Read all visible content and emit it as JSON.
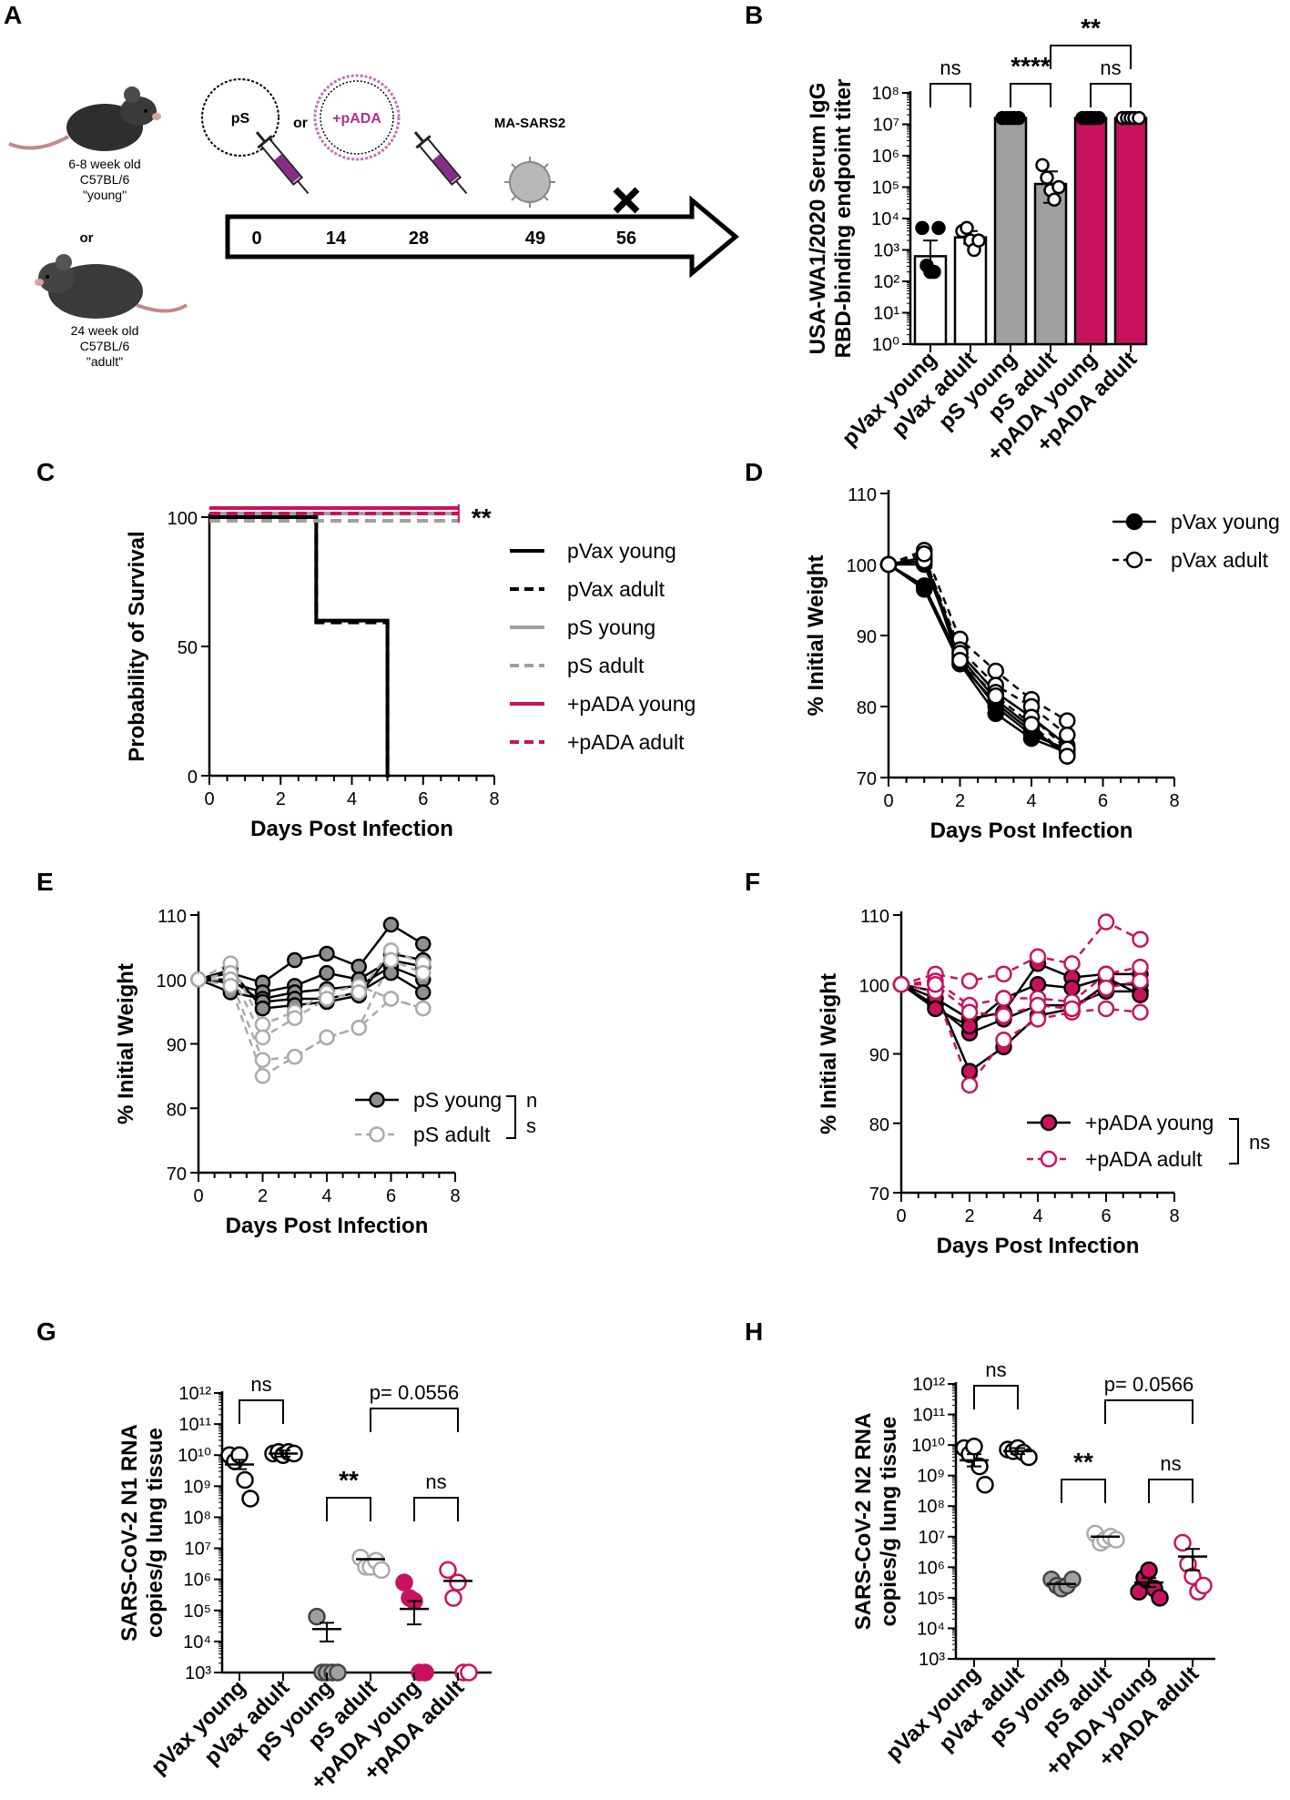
{
  "panel_labels": [
    "A",
    "B",
    "C",
    "D",
    "E",
    "F",
    "G",
    "H"
  ],
  "schematic": {
    "mouse_young_label": [
      "6-8 week old",
      "C57BL/6",
      "\"young\""
    ],
    "or_label": "or",
    "mouse_adult_label": [
      "24 week old",
      "C57BL/6",
      "\"adult\""
    ],
    "plasmid_ps": "pS",
    "plasmid_or": "or",
    "plasmid_pada": "+pADA",
    "virus_label": "MA-SARS2",
    "timeline_days": [
      "0",
      "14",
      "28",
      "49",
      "56"
    ]
  },
  "colors": {
    "black": "#000000",
    "grey": "#a0a0a0",
    "magenta": "#c8125f",
    "light_grey": "#aaaaaa"
  },
  "chart_data": [
    {
      "id": "B",
      "type": "bar",
      "yscale": "log",
      "ylabel": [
        "USA-WA1/2020 Serum IgG",
        "RBD-binding endpoint titer"
      ],
      "ylim_exp": [
        0,
        8
      ],
      "ytick_labels": [
        "10⁰",
        "10¹",
        "10²",
        "10³",
        "10⁴",
        "10⁵",
        "10⁶",
        "10⁷",
        "10⁸"
      ],
      "categories": [
        "pVax young",
        "pVax adult",
        "pS young",
        "pS adult",
        "+pADA young",
        "+pADA adult"
      ],
      "bar_exp": [
        2.8,
        3.4,
        7.2,
        5.1,
        7.2,
        7.2
      ],
      "err_exp": [
        [
          2.4,
          3.3
        ],
        [
          3.2,
          3.6
        ],
        [
          7.2,
          7.2
        ],
        [
          4.5,
          5.5
        ],
        [
          7.2,
          7.2
        ],
        [
          7.2,
          7.2
        ]
      ],
      "points_exp": [
        [
          3.7,
          2.5,
          2.3,
          2.3,
          3.7
        ],
        [
          3.6,
          3.7,
          3.3,
          3.0,
          3.3
        ],
        [
          7.2,
          7.2,
          7.2,
          7.2,
          7.2
        ],
        [
          5.7,
          5.3,
          4.9,
          4.6,
          5.0
        ],
        [
          7.2,
          7.2,
          7.2,
          7.2,
          7.2
        ],
        [
          7.2,
          7.2,
          7.2,
          7.2,
          7.2
        ]
      ],
      "bar_fill": [
        "#ffffff",
        "#ffffff",
        "#a0a0a0",
        "#a0a0a0",
        "#c8125f",
        "#c8125f"
      ],
      "point_fill": [
        "#000000",
        "#ffffff",
        "#000000",
        "#ffffff",
        "#000000",
        "#ffffff"
      ],
      "comparisons": [
        {
          "from": 0,
          "to": 1,
          "label": "ns"
        },
        {
          "from": 2,
          "to": 3,
          "label": "****"
        },
        {
          "from": 4,
          "to": 5,
          "label": "ns"
        },
        {
          "from": 3,
          "to": 5,
          "label": "**"
        }
      ]
    },
    {
      "id": "C",
      "type": "line",
      "subtype": "survival",
      "xlabel": "Days Post Infection",
      "ylabel": "Probability of Survival",
      "xlim": [
        0,
        8
      ],
      "ylim": [
        0,
        100
      ],
      "xticks": [
        0,
        2,
        4,
        6,
        8
      ],
      "yticks": [
        0,
        50,
        100
      ],
      "series": [
        {
          "name": "pVax young",
          "color": "#000000",
          "dash": false,
          "steps": [
            [
              0,
              100
            ],
            [
              3,
              100
            ],
            [
              3,
              60
            ],
            [
              5,
              60
            ],
            [
              5,
              0
            ]
          ]
        },
        {
          "name": "pVax adult",
          "color": "#000000",
          "dash": true,
          "steps": [
            [
              0,
              100
            ],
            [
              3,
              100
            ],
            [
              3,
              60
            ],
            [
              5,
              60
            ],
            [
              5,
              0
            ]
          ]
        },
        {
          "name": "pS young",
          "color": "#a0a0a0",
          "dash": false,
          "steps": [
            [
              0,
              100
            ],
            [
              7,
              100
            ]
          ]
        },
        {
          "name": "pS adult",
          "color": "#a0a0a0",
          "dash": true,
          "steps": [
            [
              0,
              100
            ],
            [
              7,
              100
            ]
          ]
        },
        {
          "name": "+pADA young",
          "color": "#c8125f",
          "dash": false,
          "steps": [
            [
              0,
              100
            ],
            [
              7,
              100
            ]
          ]
        },
        {
          "name": "+pADA adult",
          "color": "#c8125f",
          "dash": true,
          "steps": [
            [
              0,
              100
            ],
            [
              7,
              100
            ]
          ]
        }
      ],
      "annotation": "**"
    },
    {
      "id": "D",
      "type": "line",
      "xlabel": "Days Post Infection",
      "ylabel": "% Initial Weight",
      "xlim": [
        0,
        8
      ],
      "ylim": [
        70,
        110
      ],
      "xticks": [
        0,
        2,
        4,
        6,
        8
      ],
      "yticks": [
        70,
        80,
        90,
        100,
        110
      ],
      "x": [
        0,
        1,
        2,
        3,
        4,
        5
      ],
      "series": [
        {
          "name": "pVax young",
          "group": "young",
          "values": [
            100,
            96.5,
            86,
            79,
            75.5,
            73.5
          ]
        },
        {
          "name": "pVax young",
          "group": "young",
          "values": [
            100,
            97,
            86.5,
            80,
            76,
            74
          ]
        },
        {
          "name": "pVax young",
          "group": "young",
          "values": [
            100,
            100,
            87,
            81,
            77,
            73
          ]
        },
        {
          "name": "pVax young",
          "group": "young",
          "values": [
            100,
            100.5,
            87.5,
            82,
            78.5,
            74.5
          ]
        },
        {
          "name": "pVax young",
          "group": "young",
          "values": [
            100,
            101,
            86,
            80.5,
            76.5,
            73.5
          ]
        },
        {
          "name": "pVax adult",
          "group": "adult",
          "values": [
            100,
            102,
            89.5,
            85,
            81,
            78
          ]
        },
        {
          "name": "pVax adult",
          "group": "adult",
          "values": [
            100,
            101,
            88,
            83,
            80,
            76
          ]
        },
        {
          "name": "pVax adult",
          "group": "adult",
          "values": [
            100,
            100.5,
            87.5,
            82,
            78.5,
            74
          ]
        },
        {
          "name": "pVax adult",
          "group": "adult",
          "values": [
            100,
            101.5,
            86.5,
            81.5,
            77.5,
            73
          ]
        }
      ],
      "legend": [
        {
          "name": "pVax young",
          "group": "young"
        },
        {
          "name": "pVax adult",
          "group": "adult"
        }
      ]
    },
    {
      "id": "E",
      "type": "line",
      "xlabel": "Days Post Infection",
      "ylabel": "% Initial Weight",
      "xlim": [
        0,
        8
      ],
      "ylim": [
        70,
        110
      ],
      "xticks": [
        0,
        2,
        4,
        6,
        8
      ],
      "yticks": [
        70,
        80,
        90,
        100,
        110
      ],
      "x": [
        0,
        1,
        2,
        3,
        4,
        5,
        6,
        7
      ],
      "series": [
        {
          "name": "pS young",
          "group": "young",
          "values": [
            100,
            101,
            99.5,
            103,
            104,
            102,
            108.5,
            105.5
          ]
        },
        {
          "name": "pS young",
          "group": "young",
          "values": [
            100,
            99.5,
            98,
            99,
            101,
            100,
            103,
            102
          ]
        },
        {
          "name": "pS young",
          "group": "young",
          "values": [
            100,
            98,
            97,
            98,
            98.5,
            99,
            102,
            100
          ]
        },
        {
          "name": "pS young",
          "group": "young",
          "values": [
            100,
            100,
            96.5,
            97,
            97,
            98,
            101,
            98
          ]
        },
        {
          "name": "pS young",
          "group": "young",
          "values": [
            100,
            101.5,
            95.5,
            96,
            96.5,
            97.5,
            104,
            103
          ]
        },
        {
          "name": "pS adult",
          "group": "adult",
          "values": [
            100,
            102.5,
            93,
            95,
            98,
            99,
            97,
            95.5
          ]
        },
        {
          "name": "pS adult",
          "group": "adult",
          "values": [
            100,
            101,
            91,
            94,
            97,
            98,
            104.5,
            102.5
          ]
        },
        {
          "name": "pS adult",
          "group": "adult",
          "values": [
            100,
            100,
            87.5,
            88,
            91,
            92.5,
            103,
            101
          ]
        },
        {
          "name": "pS adult",
          "group": "adult",
          "values": [
            100,
            99,
            85,
            88,
            91,
            92.5,
            97,
            95.5
          ]
        }
      ],
      "legend": [
        {
          "name": "pS young",
          "group": "young"
        },
        {
          "name": "pS adult",
          "group": "adult"
        }
      ],
      "annotation": [
        "n",
        "s"
      ]
    },
    {
      "id": "F",
      "type": "line",
      "xlabel": "Days Post Infection",
      "ylabel": "% Initial Weight",
      "xlim": [
        0,
        8
      ],
      "ylim": [
        70,
        110
      ],
      "xticks": [
        0,
        2,
        4,
        6,
        8
      ],
      "yticks": [
        70,
        80,
        90,
        100,
        110
      ],
      "x": [
        0,
        1,
        2,
        3,
        4,
        5,
        6,
        7
      ],
      "series": [
        {
          "name": "+pADA young",
          "group": "young",
          "values": [
            100,
            99,
            87.5,
            91,
            95.5,
            96.5,
            100,
            100
          ]
        },
        {
          "name": "+pADA young",
          "group": "young",
          "values": [
            100,
            97,
            93,
            95,
            97,
            97,
            99,
            99
          ]
        },
        {
          "name": "+pADA young",
          "group": "young",
          "values": [
            100,
            98,
            95,
            96,
            103,
            101,
            101.5,
            101.5
          ]
        },
        {
          "name": "+pADA young",
          "group": "young",
          "values": [
            100,
            96.5,
            94,
            98,
            100,
            99.5,
            101,
            98.5
          ]
        },
        {
          "name": "+pADA adult",
          "group": "adult",
          "values": [
            100,
            101.5,
            100.5,
            101.5,
            104,
            103,
            109,
            106.5
          ]
        },
        {
          "name": "+pADA adult",
          "group": "adult",
          "values": [
            100,
            100.5,
            97,
            98,
            98,
            97.5,
            101.5,
            102.5
          ]
        },
        {
          "name": "+pADA adult",
          "group": "adult",
          "values": [
            100,
            99,
            85.5,
            92,
            95,
            96,
            96.5,
            96
          ]
        },
        {
          "name": "+pADA adult",
          "group": "adult",
          "values": [
            100,
            100,
            96,
            95.5,
            97,
            96.5,
            99.5,
            100.5
          ]
        }
      ],
      "legend": [
        {
          "name": "+pADA young",
          "group": "young"
        },
        {
          "name": "+pADA adult",
          "group": "adult"
        }
      ],
      "annotation": "ns"
    },
    {
      "id": "G",
      "type": "scatter",
      "yscale": "log",
      "ylabel": [
        "SARS-CoV-2 N1 RNA",
        "copies/g lung tissue"
      ],
      "ylim_exp": [
        3,
        12
      ],
      "ytick_labels": [
        "10³",
        "10⁴",
        "10⁵",
        "10⁶",
        "10⁷",
        "10⁸",
        "10⁹",
        "10¹⁰",
        "10¹¹",
        "10¹²"
      ],
      "categories": [
        "pVax young",
        "pVax adult",
        "pS young",
        "pS adult",
        "+pADA young",
        "+pADA adult"
      ],
      "points_exp": [
        [
          10.0,
          9.8,
          10.0,
          9.2,
          8.6
        ],
        [
          10.05,
          10.1,
          10.0,
          10.1,
          10.05
        ],
        [
          4.8,
          3.0,
          3.0,
          3.0,
          3.0
        ],
        [
          6.7,
          6.4,
          6.4,
          6.6,
          6.3
        ],
        [
          5.9,
          5.4,
          5.3,
          3.0,
          3.0
        ],
        [
          6.3,
          5.4,
          5.9,
          3.0,
          3.0
        ]
      ],
      "means_exp": [
        9.7,
        10.05,
        4.4,
        6.65,
        5.05,
        5.95
      ],
      "err_exp": [
        [
          9.55,
          9.85
        ],
        [
          9.95,
          10.15
        ],
        [
          4.0,
          4.6
        ],
        null,
        [
          4.55,
          5.3
        ],
        null
      ],
      "point_stroke": [
        "#000000",
        "#000000",
        "#444444",
        "#aaaaaa",
        "#c8125f",
        "#c8125f"
      ],
      "point_fill": [
        "#ffffff",
        "#ffffff",
        "#a0a0a0",
        "#ffffff",
        "#c8125f",
        "#ffffff"
      ],
      "comparisons": [
        {
          "from": 0,
          "to": 1,
          "label": "ns"
        },
        {
          "from": 2,
          "to": 3,
          "label": "**"
        },
        {
          "from": 4,
          "to": 5,
          "label": "ns"
        },
        {
          "from": 3,
          "to": 5,
          "label": "p= 0.0556"
        }
      ]
    },
    {
      "id": "H",
      "type": "scatter",
      "yscale": "log",
      "ylabel": [
        "SARS-CoV-2 N2 RNA",
        "copies/g lung tissue"
      ],
      "ylim_exp": [
        3,
        12
      ],
      "ytick_labels": [
        "10³",
        "10⁴",
        "10⁵",
        "10⁶",
        "10⁷",
        "10⁸",
        "10⁹",
        "10¹⁰",
        "10¹¹",
        "10¹²"
      ],
      "categories": [
        "pVax young",
        "pVax adult",
        "pS young",
        "pS adult",
        "+pADA young",
        "+pADA adult"
      ],
      "points_exp": [
        [
          9.9,
          9.7,
          9.95,
          9.3,
          8.7
        ],
        [
          9.85,
          9.8,
          9.9,
          9.75,
          9.6
        ],
        [
          5.6,
          5.4,
          5.3,
          5.4,
          5.6
        ],
        [
          7.1,
          6.8,
          6.9,
          7.0,
          6.9
        ],
        [
          5.2,
          5.65,
          5.9,
          5.3,
          5.0
        ],
        [
          6.8,
          6.1,
          5.7,
          5.2,
          5.4
        ]
      ],
      "means_exp": [
        9.5,
        9.8,
        5.45,
        7.0,
        5.5,
        6.35
      ],
      "err_exp": [
        [
          9.3,
          9.7
        ],
        [
          9.7,
          9.9
        ],
        null,
        null,
        [
          5.35,
          5.65
        ],
        [
          5.9,
          6.6
        ]
      ],
      "point_stroke": [
        "#000000",
        "#000000",
        "#444444",
        "#aaaaaa",
        "#000000",
        "#c8125f"
      ],
      "point_fill": [
        "#ffffff",
        "#ffffff",
        "#a0a0a0",
        "#ffffff",
        "#c8125f",
        "#ffffff"
      ],
      "comparisons": [
        {
          "from": 0,
          "to": 1,
          "label": "ns"
        },
        {
          "from": 2,
          "to": 3,
          "label": "**"
        },
        {
          "from": 4,
          "to": 5,
          "label": "ns"
        },
        {
          "from": 3,
          "to": 5,
          "label": "p= 0.0566"
        }
      ]
    }
  ]
}
